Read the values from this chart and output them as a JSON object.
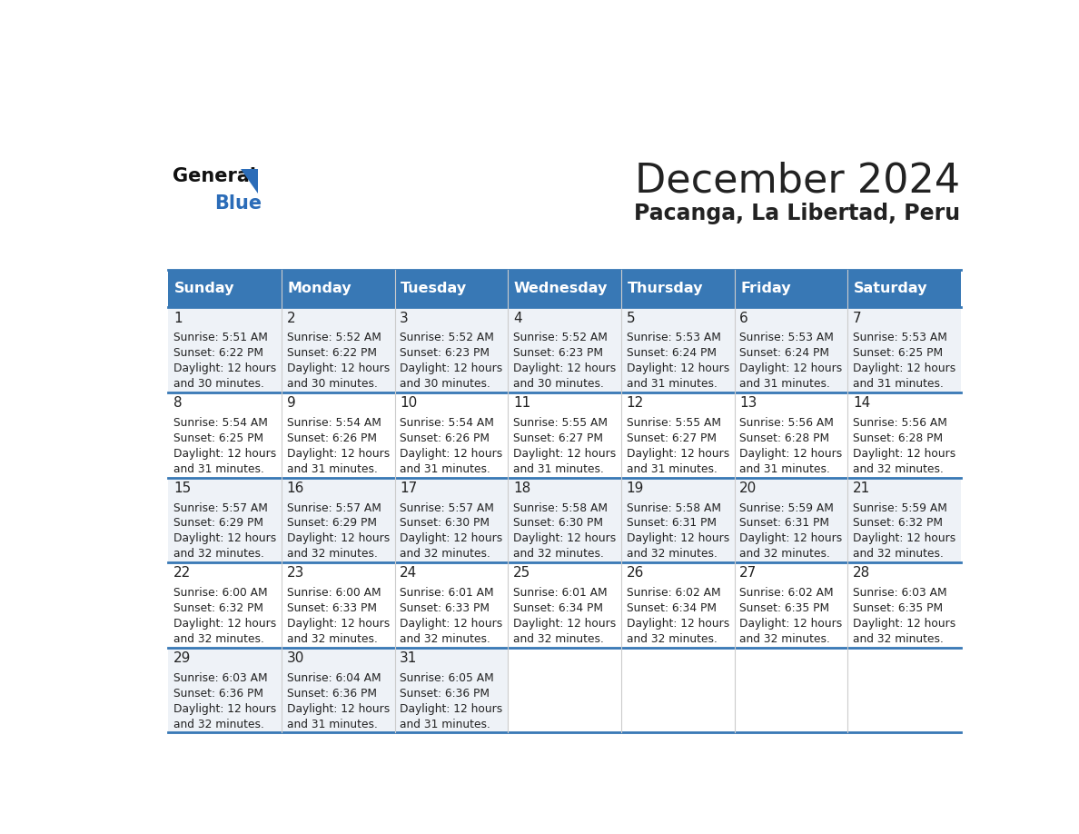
{
  "title": "December 2024",
  "subtitle": "Pacanga, La Libertad, Peru",
  "days_of_week": [
    "Sunday",
    "Monday",
    "Tuesday",
    "Wednesday",
    "Thursday",
    "Friday",
    "Saturday"
  ],
  "header_bg": "#3878b5",
  "header_text": "#ffffff",
  "bg_color": "#ffffff",
  "cell_bg_odd": "#eef2f7",
  "cell_bg_even": "#ffffff",
  "divider_color": "#3878b5",
  "text_color": "#222222",
  "logo_general_color": "#111111",
  "logo_blue_color": "#2b6cb8",
  "calendar_data": [
    {
      "day": 1,
      "row": 0,
      "col": 0,
      "sunrise": "5:51 AM",
      "sunset": "6:22 PM",
      "daylight_line1": "Daylight: 12 hours",
      "daylight_line2": "and 30 minutes."
    },
    {
      "day": 2,
      "row": 0,
      "col": 1,
      "sunrise": "5:52 AM",
      "sunset": "6:22 PM",
      "daylight_line1": "Daylight: 12 hours",
      "daylight_line2": "and 30 minutes."
    },
    {
      "day": 3,
      "row": 0,
      "col": 2,
      "sunrise": "5:52 AM",
      "sunset": "6:23 PM",
      "daylight_line1": "Daylight: 12 hours",
      "daylight_line2": "and 30 minutes."
    },
    {
      "day": 4,
      "row": 0,
      "col": 3,
      "sunrise": "5:52 AM",
      "sunset": "6:23 PM",
      "daylight_line1": "Daylight: 12 hours",
      "daylight_line2": "and 30 minutes."
    },
    {
      "day": 5,
      "row": 0,
      "col": 4,
      "sunrise": "5:53 AM",
      "sunset": "6:24 PM",
      "daylight_line1": "Daylight: 12 hours",
      "daylight_line2": "and 31 minutes."
    },
    {
      "day": 6,
      "row": 0,
      "col": 5,
      "sunrise": "5:53 AM",
      "sunset": "6:24 PM",
      "daylight_line1": "Daylight: 12 hours",
      "daylight_line2": "and 31 minutes."
    },
    {
      "day": 7,
      "row": 0,
      "col": 6,
      "sunrise": "5:53 AM",
      "sunset": "6:25 PM",
      "daylight_line1": "Daylight: 12 hours",
      "daylight_line2": "and 31 minutes."
    },
    {
      "day": 8,
      "row": 1,
      "col": 0,
      "sunrise": "5:54 AM",
      "sunset": "6:25 PM",
      "daylight_line1": "Daylight: 12 hours",
      "daylight_line2": "and 31 minutes."
    },
    {
      "day": 9,
      "row": 1,
      "col": 1,
      "sunrise": "5:54 AM",
      "sunset": "6:26 PM",
      "daylight_line1": "Daylight: 12 hours",
      "daylight_line2": "and 31 minutes."
    },
    {
      "day": 10,
      "row": 1,
      "col": 2,
      "sunrise": "5:54 AM",
      "sunset": "6:26 PM",
      "daylight_line1": "Daylight: 12 hours",
      "daylight_line2": "and 31 minutes."
    },
    {
      "day": 11,
      "row": 1,
      "col": 3,
      "sunrise": "5:55 AM",
      "sunset": "6:27 PM",
      "daylight_line1": "Daylight: 12 hours",
      "daylight_line2": "and 31 minutes."
    },
    {
      "day": 12,
      "row": 1,
      "col": 4,
      "sunrise": "5:55 AM",
      "sunset": "6:27 PM",
      "daylight_line1": "Daylight: 12 hours",
      "daylight_line2": "and 31 minutes."
    },
    {
      "day": 13,
      "row": 1,
      "col": 5,
      "sunrise": "5:56 AM",
      "sunset": "6:28 PM",
      "daylight_line1": "Daylight: 12 hours",
      "daylight_line2": "and 31 minutes."
    },
    {
      "day": 14,
      "row": 1,
      "col": 6,
      "sunrise": "5:56 AM",
      "sunset": "6:28 PM",
      "daylight_line1": "Daylight: 12 hours",
      "daylight_line2": "and 32 minutes."
    },
    {
      "day": 15,
      "row": 2,
      "col": 0,
      "sunrise": "5:57 AM",
      "sunset": "6:29 PM",
      "daylight_line1": "Daylight: 12 hours",
      "daylight_line2": "and 32 minutes."
    },
    {
      "day": 16,
      "row": 2,
      "col": 1,
      "sunrise": "5:57 AM",
      "sunset": "6:29 PM",
      "daylight_line1": "Daylight: 12 hours",
      "daylight_line2": "and 32 minutes."
    },
    {
      "day": 17,
      "row": 2,
      "col": 2,
      "sunrise": "5:57 AM",
      "sunset": "6:30 PM",
      "daylight_line1": "Daylight: 12 hours",
      "daylight_line2": "and 32 minutes."
    },
    {
      "day": 18,
      "row": 2,
      "col": 3,
      "sunrise": "5:58 AM",
      "sunset": "6:30 PM",
      "daylight_line1": "Daylight: 12 hours",
      "daylight_line2": "and 32 minutes."
    },
    {
      "day": 19,
      "row": 2,
      "col": 4,
      "sunrise": "5:58 AM",
      "sunset": "6:31 PM",
      "daylight_line1": "Daylight: 12 hours",
      "daylight_line2": "and 32 minutes."
    },
    {
      "day": 20,
      "row": 2,
      "col": 5,
      "sunrise": "5:59 AM",
      "sunset": "6:31 PM",
      "daylight_line1": "Daylight: 12 hours",
      "daylight_line2": "and 32 minutes."
    },
    {
      "day": 21,
      "row": 2,
      "col": 6,
      "sunrise": "5:59 AM",
      "sunset": "6:32 PM",
      "daylight_line1": "Daylight: 12 hours",
      "daylight_line2": "and 32 minutes."
    },
    {
      "day": 22,
      "row": 3,
      "col": 0,
      "sunrise": "6:00 AM",
      "sunset": "6:32 PM",
      "daylight_line1": "Daylight: 12 hours",
      "daylight_line2": "and 32 minutes."
    },
    {
      "day": 23,
      "row": 3,
      "col": 1,
      "sunrise": "6:00 AM",
      "sunset": "6:33 PM",
      "daylight_line1": "Daylight: 12 hours",
      "daylight_line2": "and 32 minutes."
    },
    {
      "day": 24,
      "row": 3,
      "col": 2,
      "sunrise": "6:01 AM",
      "sunset": "6:33 PM",
      "daylight_line1": "Daylight: 12 hours",
      "daylight_line2": "and 32 minutes."
    },
    {
      "day": 25,
      "row": 3,
      "col": 3,
      "sunrise": "6:01 AM",
      "sunset": "6:34 PM",
      "daylight_line1": "Daylight: 12 hours",
      "daylight_line2": "and 32 minutes."
    },
    {
      "day": 26,
      "row": 3,
      "col": 4,
      "sunrise": "6:02 AM",
      "sunset": "6:34 PM",
      "daylight_line1": "Daylight: 12 hours",
      "daylight_line2": "and 32 minutes."
    },
    {
      "day": 27,
      "row": 3,
      "col": 5,
      "sunrise": "6:02 AM",
      "sunset": "6:35 PM",
      "daylight_line1": "Daylight: 12 hours",
      "daylight_line2": "and 32 minutes."
    },
    {
      "day": 28,
      "row": 3,
      "col": 6,
      "sunrise": "6:03 AM",
      "sunset": "6:35 PM",
      "daylight_line1": "Daylight: 12 hours",
      "daylight_line2": "and 32 minutes."
    },
    {
      "day": 29,
      "row": 4,
      "col": 0,
      "sunrise": "6:03 AM",
      "sunset": "6:36 PM",
      "daylight_line1": "Daylight: 12 hours",
      "daylight_line2": "and 32 minutes."
    },
    {
      "day": 30,
      "row": 4,
      "col": 1,
      "sunrise": "6:04 AM",
      "sunset": "6:36 PM",
      "daylight_line1": "Daylight: 12 hours",
      "daylight_line2": "and 31 minutes."
    },
    {
      "day": 31,
      "row": 4,
      "col": 2,
      "sunrise": "6:05 AM",
      "sunset": "6:36 PM",
      "daylight_line1": "Daylight: 12 hours",
      "daylight_line2": "and 31 minutes."
    }
  ]
}
